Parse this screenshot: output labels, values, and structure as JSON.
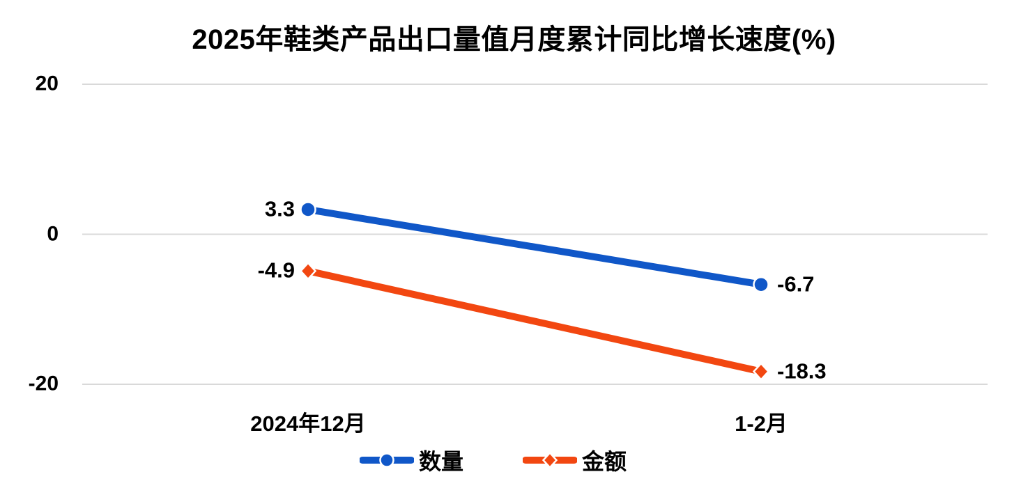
{
  "chart_data": {
    "type": "line",
    "title": "2025年鞋类产品出口量值月度累计同比增长速度(%)",
    "categories": [
      "2024年12月",
      "1-2月"
    ],
    "series": [
      {
        "name": "数量",
        "marker": "circle",
        "color": "#1057C8",
        "values": [
          3.3,
          -6.7
        ],
        "data_labels": [
          "3.3",
          "-6.7"
        ]
      },
      {
        "name": "金额",
        "marker": "diamond",
        "color": "#F24711",
        "values": [
          -4.9,
          -18.3
        ],
        "data_labels": [
          "-4.9",
          "-18.3"
        ]
      }
    ],
    "xlabel": "",
    "ylabel": "",
    "ylim": [
      -20,
      20
    ],
    "yticks": [
      20,
      0,
      -20
    ],
    "ytick_labels": [
      "20",
      "0",
      "-20"
    ],
    "grid": "horizontal-only",
    "gridline_color": "#D9D9D9",
    "legend_position": "bottom",
    "text_color": "#000000",
    "background_color": "#FFFFFF"
  }
}
